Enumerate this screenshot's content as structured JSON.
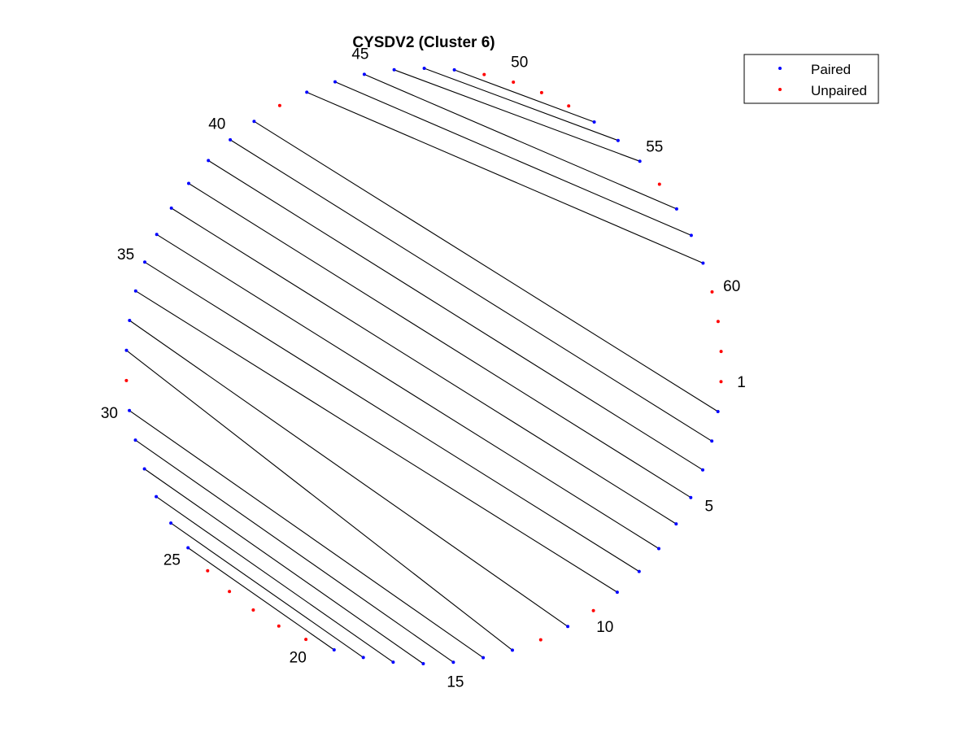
{
  "figure": {
    "title": "CYSDV2 (Cluster 6)"
  },
  "legend": {
    "position": "top-right",
    "entries": [
      {
        "label": "Paired",
        "color": "#0000ff"
      },
      {
        "label": "Unpaired",
        "color": "#ff0000"
      }
    ]
  },
  "chart_data": {
    "type": "arc-diagram",
    "layout": "circle",
    "n_positions": 62,
    "tick_labels": [
      "1",
      "5",
      "10",
      "15",
      "20",
      "25",
      "30",
      "35",
      "40",
      "45",
      "50",
      "55",
      "60"
    ],
    "colors": {
      "paired": "#0000ff",
      "unpaired": "#ff0000",
      "pair_line": "#000000"
    },
    "pairs": [
      [
        2,
        41
      ],
      [
        3,
        40
      ],
      [
        4,
        39
      ],
      [
        5,
        38
      ],
      [
        6,
        37
      ],
      [
        7,
        36
      ],
      [
        8,
        35
      ],
      [
        9,
        34
      ],
      [
        11,
        33
      ],
      [
        13,
        32
      ],
      [
        14,
        30
      ],
      [
        15,
        29
      ],
      [
        16,
        28
      ],
      [
        17,
        27
      ],
      [
        18,
        26
      ],
      [
        19,
        25
      ],
      [
        43,
        59
      ],
      [
        44,
        58
      ],
      [
        45,
        57
      ],
      [
        46,
        55
      ],
      [
        47,
        54
      ],
      [
        48,
        53
      ]
    ],
    "unpaired": [
      1,
      10,
      12,
      20,
      21,
      22,
      23,
      24,
      31,
      42,
      49,
      50,
      51,
      52,
      56,
      60,
      61,
      62
    ]
  }
}
